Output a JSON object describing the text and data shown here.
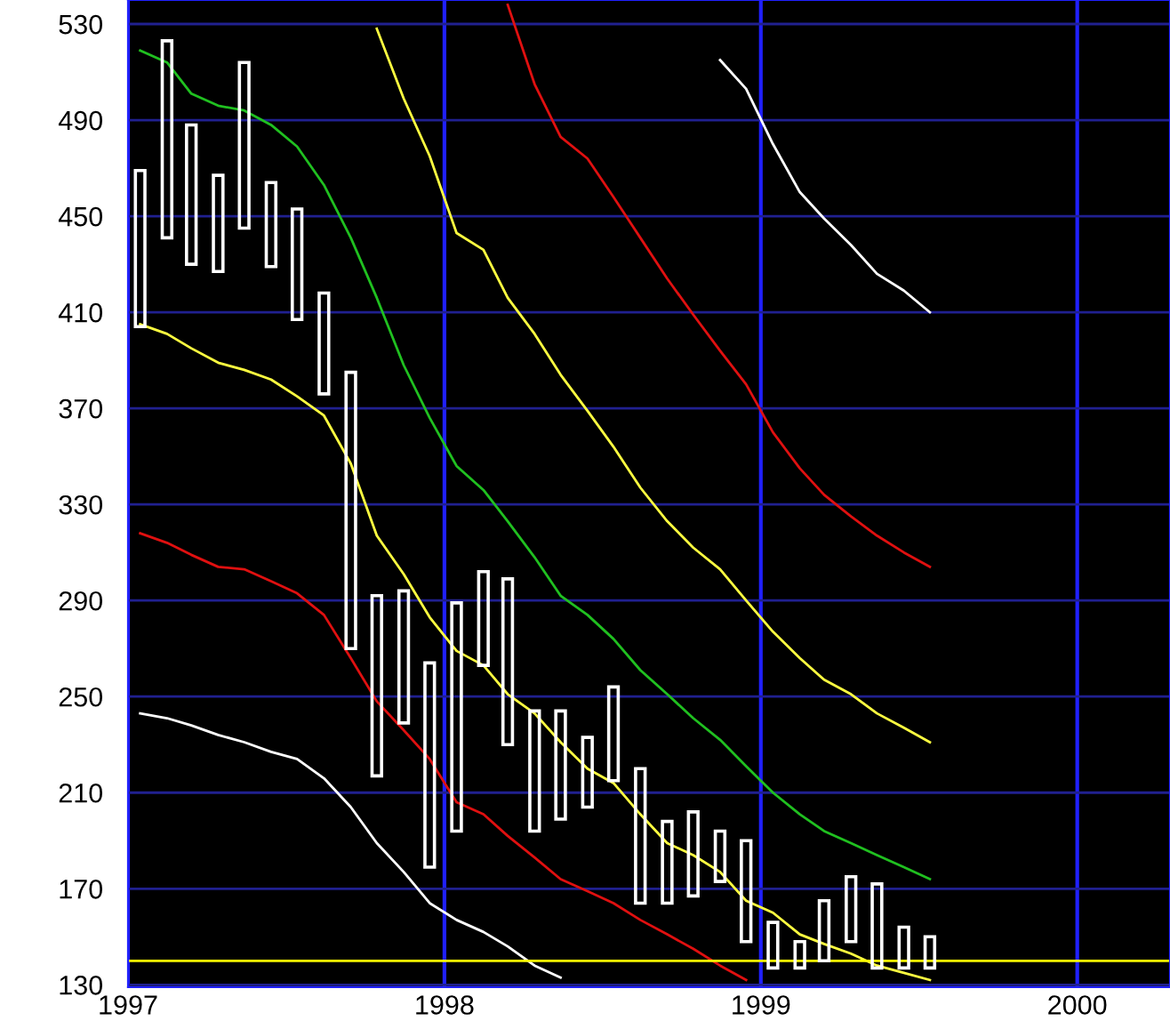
{
  "chart_data": {
    "type": "bar",
    "x": [
      "1997-01-15",
      "1997-02-15",
      "1997-03-15",
      "1997-04-15",
      "1997-05-15",
      "1997-06-15",
      "1997-07-15",
      "1997-08-15",
      "1997-09-15",
      "1997-10-15",
      "1997-11-15",
      "1997-12-15",
      "1998-01-15",
      "1998-02-15",
      "1998-03-15",
      "1998-04-15",
      "1998-05-15",
      "1998-06-15",
      "1998-07-15",
      "1998-08-15",
      "1998-09-15",
      "1998-10-15",
      "1998-11-15",
      "1998-12-15",
      "1999-01-15",
      "1999-02-15",
      "1999-03-15",
      "1999-04-15",
      "1999-05-15",
      "1999-06-15",
      "1999-07-15"
    ],
    "series": [
      {
        "color": "#ffffff",
        "base": [
          404,
          441,
          430,
          427,
          445,
          429,
          407,
          376,
          270,
          217,
          239,
          179,
          194,
          263,
          230,
          194,
          199,
          204,
          215,
          164,
          164,
          167,
          173,
          148,
          137,
          137,
          140,
          148,
          137,
          137,
          137
        ],
        "values": [
          65,
          82,
          58,
          40,
          69,
          35,
          46,
          42,
          115,
          75,
          55,
          85,
          95,
          39,
          69,
          50,
          45,
          29,
          39,
          56,
          34,
          35,
          21,
          42,
          19,
          11,
          25,
          27,
          35,
          17,
          13
        ]
      },
      {
        "type": "line",
        "color": "#ffffff",
        "values": [
          null,
          null,
          null,
          null,
          null,
          null,
          null,
          null,
          null,
          null,
          null,
          null,
          null,
          null,
          null,
          null,
          null,
          null,
          null,
          null,
          null,
          null,
          515,
          503,
          480,
          460,
          449,
          438,
          426,
          419,
          410
        ]
      },
      {
        "type": "line",
        "color": "#e01010",
        "values": [
          null,
          null,
          null,
          null,
          null,
          null,
          null,
          null,
          null,
          null,
          null,
          null,
          null,
          null,
          538,
          505,
          483,
          474,
          458,
          441,
          424,
          409,
          394,
          380,
          360,
          345,
          334,
          325,
          317,
          310,
          304
        ]
      },
      {
        "type": "line",
        "color": "#ffff40",
        "values": [
          null,
          null,
          null,
          null,
          null,
          null,
          null,
          null,
          null,
          528,
          499,
          475,
          443,
          436,
          416,
          401,
          384,
          369,
          354,
          337,
          323,
          312,
          303,
          290,
          277,
          266,
          257,
          251,
          243,
          237,
          231
        ]
      },
      {
        "type": "line",
        "color": "#20c020",
        "values": [
          519,
          514,
          501,
          496,
          494,
          488,
          479,
          463,
          441,
          416,
          388,
          366,
          346,
          336,
          323,
          308,
          292,
          284,
          274,
          261,
          251,
          241,
          232,
          221,
          210,
          201,
          194,
          189,
          184,
          179,
          174
        ]
      },
      {
        "type": "line",
        "color": "#ffff40",
        "values": [
          405,
          401,
          395,
          389,
          386,
          382,
          375,
          367,
          347,
          317,
          301,
          283,
          269,
          263,
          251,
          243,
          231,
          220,
          214,
          201,
          189,
          184,
          177,
          165,
          160,
          151,
          147,
          143,
          138,
          135,
          132
        ]
      },
      {
        "type": "line",
        "color": "#e01010",
        "values": [
          318,
          314,
          309,
          304,
          303,
          298,
          293,
          284,
          266,
          248,
          236,
          224,
          206,
          201,
          192,
          183,
          174,
          169,
          164,
          157,
          151,
          145,
          138,
          132,
          null,
          null,
          null,
          null,
          null,
          null,
          null
        ]
      },
      {
        "type": "line",
        "color": "#ffffff",
        "values": [
          243,
          241,
          238,
          234,
          231,
          227,
          224,
          216,
          204,
          189,
          177,
          164,
          157,
          152,
          146,
          138,
          133,
          null,
          null,
          null,
          null,
          null,
          null,
          null,
          null,
          null,
          null,
          null,
          null,
          null,
          null
        ]
      }
    ],
    "ref_lines": [
      {
        "axis": "y",
        "value": 140,
        "color": "#ffff00"
      }
    ],
    "xlim": [
      "1997-01-01",
      "2000-04-17"
    ],
    "xticks": [
      {
        "value": "1997-01-01",
        "label": "1997"
      },
      {
        "value": "1998-01-01",
        "label": "1998"
      },
      {
        "value": "1999-01-01",
        "label": "1999"
      },
      {
        "value": "2000-01-01",
        "label": "2000"
      }
    ],
    "ylim": [
      129,
      540
    ],
    "yticks": [
      130,
      170,
      210,
      250,
      290,
      330,
      370,
      410,
      450,
      490,
      530
    ],
    "grid": true,
    "legend": false
  }
}
